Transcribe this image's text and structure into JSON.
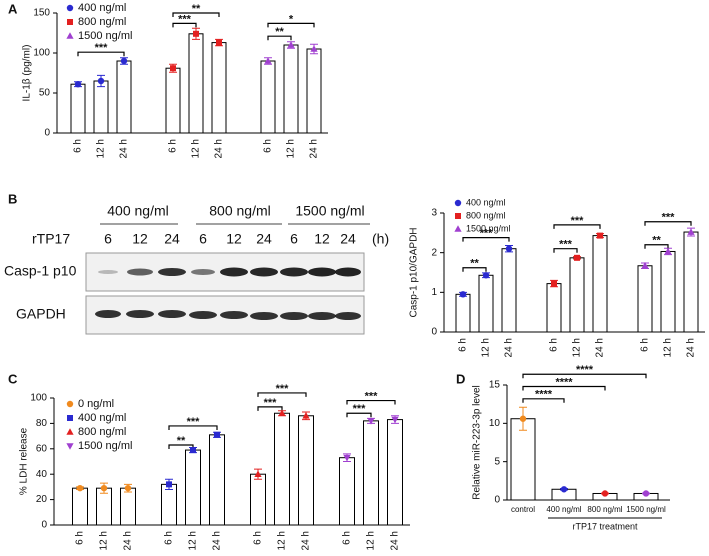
{
  "chart_data": [
    {
      "panel": "A",
      "type": "bar",
      "ylabel": "IL-1β (pg/ml)",
      "ylim": [
        0,
        150
      ],
      "yticks": [
        0,
        50,
        100,
        150
      ],
      "legend": "top-left",
      "categories": [
        "6 h",
        "12 h",
        "24 h"
      ],
      "series": [
        {
          "name": "400 ng/ml",
          "color": "#2a2ad0",
          "marker": "circle",
          "values": [
            61,
            65,
            90
          ],
          "errors": [
            3,
            7,
            4
          ]
        },
        {
          "name": "800 ng/ml",
          "color": "#e32020",
          "marker": "square",
          "values": [
            81,
            124,
            113
          ],
          "errors": [
            5,
            7,
            4
          ]
        },
        {
          "name": "1500 ng/ml",
          "color": "#a040d0",
          "marker": "triangle",
          "values": [
            90,
            110,
            105
          ],
          "errors": [
            4,
            4,
            6
          ]
        }
      ],
      "annotations": [
        {
          "label": "***",
          "from": [
            0,
            0
          ],
          "to": [
            0,
            2
          ],
          "y": 101
        },
        {
          "label": "***",
          "from": [
            1,
            0
          ],
          "to": [
            1,
            1
          ],
          "y": 137
        },
        {
          "label": "**",
          "from": [
            1,
            0
          ],
          "to": [
            1,
            2
          ],
          "y": 150
        },
        {
          "label": "**",
          "from": [
            2,
            0
          ],
          "to": [
            2,
            1
          ],
          "y": 121
        },
        {
          "label": "*",
          "from": [
            2,
            0
          ],
          "to": [
            2,
            2
          ],
          "y": 137
        }
      ]
    },
    {
      "type": "bar",
      "ylabel": "Casp-1 p10/GAPDH",
      "ylim": [
        0,
        3
      ],
      "yticks": [
        0,
        1,
        2,
        3
      ],
      "legend": "top-left",
      "categories": [
        "6 h",
        "12 h",
        "24 h"
      ],
      "series": [
        {
          "name": "400 ng/ml",
          "color": "#2a2ad0",
          "marker": "circle",
          "values": [
            0.95,
            1.43,
            2.1
          ],
          "errors": [
            0.05,
            0.06,
            0.08
          ]
        },
        {
          "name": "800 ng/ml",
          "color": "#e32020",
          "marker": "square",
          "values": [
            1.22,
            1.87,
            2.43
          ],
          "errors": [
            0.08,
            0.03,
            0.05
          ]
        },
        {
          "name": "1500 ng/ml",
          "color": "#a040d0",
          "marker": "triangle",
          "values": [
            1.67,
            2.03,
            2.52
          ],
          "errors": [
            0.07,
            0.08,
            0.1
          ]
        }
      ],
      "annotations": [
        {
          "label": "**",
          "from": [
            0,
            0
          ],
          "to": [
            0,
            1
          ],
          "y": 1.62
        },
        {
          "label": "***",
          "from": [
            0,
            0
          ],
          "to": [
            0,
            2
          ],
          "y": 2.38
        },
        {
          "label": "***",
          "from": [
            1,
            0
          ],
          "to": [
            1,
            1
          ],
          "y": 2.1
        },
        {
          "label": "***",
          "from": [
            1,
            0
          ],
          "to": [
            1,
            2
          ],
          "y": 2.7
        },
        {
          "label": "**",
          "from": [
            2,
            0
          ],
          "to": [
            2,
            1
          ],
          "y": 2.2
        },
        {
          "label": "***",
          "from": [
            2,
            0
          ],
          "to": [
            2,
            2
          ],
          "y": 2.78
        }
      ]
    },
    {
      "panel": "C",
      "type": "bar",
      "ylabel": "% LDH release",
      "ylim": [
        0,
        100
      ],
      "yticks": [
        0,
        20,
        40,
        60,
        80,
        100
      ],
      "legend": "top-left",
      "categories": [
        "6 h",
        "12 h",
        "24 h"
      ],
      "series": [
        {
          "name": "0 ng/ml",
          "color": "#f08a1e",
          "marker": "circle",
          "values": [
            29,
            29,
            29
          ],
          "errors": [
            1,
            4,
            3
          ]
        },
        {
          "name": "400 ng/ml",
          "color": "#2a2ad0",
          "marker": "square",
          "values": [
            32,
            59,
            71
          ],
          "errors": [
            4,
            2,
            2
          ]
        },
        {
          "name": "800 ng/ml",
          "color": "#e32020",
          "marker": "triangle",
          "values": [
            40,
            88,
            86
          ],
          "errors": [
            4,
            2,
            3
          ]
        },
        {
          "name": "1500 ng/ml",
          "color": "#a040d0",
          "marker": "triangle-down",
          "values": [
            53,
            82,
            83
          ],
          "errors": [
            3,
            2,
            3
          ]
        }
      ],
      "annotations": [
        {
          "label": "**",
          "from": [
            1,
            0
          ],
          "to": [
            1,
            1
          ],
          "y": 63
        },
        {
          "label": "***",
          "from": [
            1,
            0
          ],
          "to": [
            1,
            2
          ],
          "y": 78
        },
        {
          "label": "***",
          "from": [
            2,
            0
          ],
          "to": [
            2,
            1
          ],
          "y": 93
        },
        {
          "label": "***",
          "from": [
            2,
            0
          ],
          "to": [
            2,
            2
          ],
          "y": 104
        },
        {
          "label": "***",
          "from": [
            3,
            0
          ],
          "to": [
            3,
            1
          ],
          "y": 88
        },
        {
          "label": "***",
          "from": [
            3,
            0
          ],
          "to": [
            3,
            2
          ],
          "y": 98
        }
      ]
    },
    {
      "panel": "D",
      "type": "bar",
      "ylabel": "Relative miR-223-3p level",
      "xlabel": "rTP17 treatment",
      "ylim": [
        0,
        15
      ],
      "yticks": [
        0,
        5,
        10,
        15
      ],
      "categories": [
        "control",
        "400 ng/ml",
        "800 ng/ml",
        "1500 ng/ml"
      ],
      "values": [
        10.6,
        1.4,
        0.85,
        0.85
      ],
      "errors": [
        1.5,
        0.1,
        0.05,
        0.05
      ],
      "colors": [
        "#f08a1e",
        "#2a2ad0",
        "#e32020",
        "#a040d0"
      ],
      "annotations": [
        {
          "label": "****",
          "from": 0,
          "to": 1,
          "y": 13.2
        },
        {
          "label": "****",
          "from": 0,
          "to": 2,
          "y": 14.8
        },
        {
          "label": "****",
          "from": 0,
          "to": 3,
          "y": 16.4
        }
      ]
    }
  ],
  "blot": {
    "panel": "B",
    "treatment": "rTP17",
    "concentrations": [
      "400 ng/ml",
      "800 ng/ml",
      "1500 ng/ml"
    ],
    "times": [
      "6",
      "12",
      "24",
      "6",
      "12",
      "24",
      "6",
      "12",
      "24"
    ],
    "time_unit": "(h)",
    "bands": [
      "Casp-1 p10",
      "GAPDH"
    ]
  }
}
